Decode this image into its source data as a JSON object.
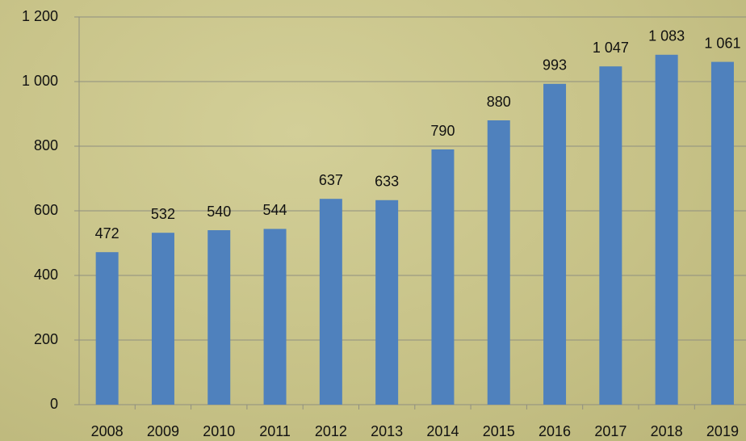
{
  "chart_data": {
    "type": "bar",
    "categories": [
      "2008",
      "2009",
      "2010",
      "2011",
      "2012",
      "2013",
      "2014",
      "2015",
      "2016",
      "2017",
      "2018",
      "2019"
    ],
    "values": [
      472,
      532,
      540,
      544,
      637,
      633,
      790,
      880,
      993,
      1047,
      1083,
      1061
    ],
    "value_labels": [
      "472",
      "532",
      "540",
      "544",
      "637",
      "633",
      "790",
      "880",
      "993",
      "1 047",
      "1 083",
      "1 061"
    ],
    "color": "#4f81bd",
    "ylim": [
      0,
      1200
    ],
    "yticks": [
      0,
      200,
      400,
      600,
      800,
      {
        "value": 1000,
        "label": "1 000"
      },
      {
        "value": 1200,
        "label": "1 200"
      }
    ],
    "grid": true
  }
}
